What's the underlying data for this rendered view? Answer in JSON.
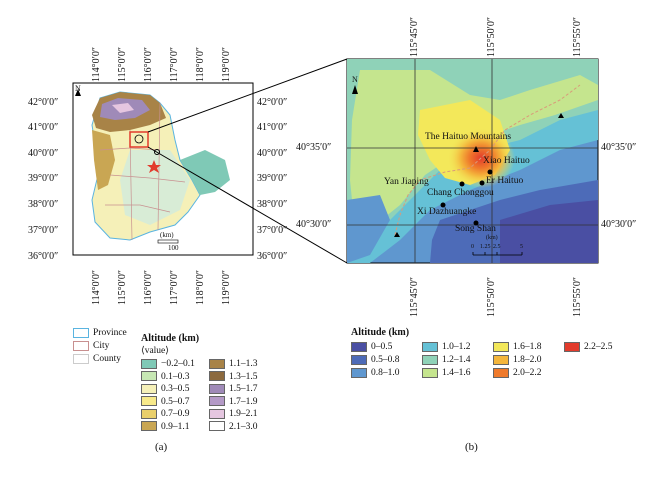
{
  "panel_a": {
    "caption": "(a)",
    "lon_ticks": [
      "114°0′0″",
      "115°0′0″",
      "116°0′0″",
      "117°0′0″",
      "118°0′0″",
      "119°0′0″"
    ],
    "lat_ticks": [
      "42°0′0″",
      "41°0′0″",
      "40°0′0″",
      "39°0′0″",
      "38°0′0″",
      "37°0′0″",
      "36°0′0″"
    ],
    "north_label": "N",
    "scale_unit": "(km)",
    "scale_value": "100",
    "boundary_legend": [
      {
        "label": "Province",
        "color": "#5ab4e0"
      },
      {
        "label": "City",
        "color": "#c89090"
      },
      {
        "label": "County",
        "color": "#cccccc"
      }
    ],
    "altitude_title": "Altitude (km)",
    "altitude_subtitle": "⟨value⟩",
    "altitude_classes": [
      {
        "label": "−0.2–0.1",
        "color": "#7fc9b6"
      },
      {
        "label": "0.1–0.3",
        "color": "#c7e8b4"
      },
      {
        "label": "0.3–0.5",
        "color": "#f5f0b8"
      },
      {
        "label": "0.5–0.7",
        "color": "#f7e98a"
      },
      {
        "label": "0.7–0.9",
        "color": "#e9cf6b"
      },
      {
        "label": "0.9–1.1",
        "color": "#c9a653"
      },
      {
        "label": "1.1–1.3",
        "color": "#a88347"
      },
      {
        "label": "1.3–1.5",
        "color": "#8c6a3e"
      },
      {
        "label": "1.5–1.7",
        "color": "#9f8ab8"
      },
      {
        "label": "1.7–1.9",
        "color": "#b49ac7"
      },
      {
        "label": "1.9–2.1",
        "color": "#e5c6e0"
      },
      {
        "label": "2.1–3.0",
        "color": "#ffffff"
      }
    ]
  },
  "panel_b": {
    "caption": "(b)",
    "lon_ticks": [
      "115°45′0″",
      "115°50′0″",
      "115°55′0″"
    ],
    "lat_ticks": [
      "40°35′0″",
      "40°30′0″"
    ],
    "north_label": "N",
    "places": [
      {
        "label": "The Haituo Mountains"
      },
      {
        "label": "Xiao Haituo"
      },
      {
        "label": "Yan Jiaping"
      },
      {
        "label": "Er Haituo"
      },
      {
        "label": "Chang Chonggou"
      },
      {
        "label": "Xi Dazhuangke"
      },
      {
        "label": "Song Shan"
      }
    ],
    "scale_unit": "(km)",
    "scale_ticks": [
      "0",
      "1.25",
      "2.5",
      "5"
    ],
    "altitude_title": "Altitude (km)",
    "altitude_classes": [
      {
        "label": "0–0.5",
        "color": "#4a4fa3"
      },
      {
        "label": "0.5–0.8",
        "color": "#4d6bb8"
      },
      {
        "label": "0.8–1.0",
        "color": "#5f97cf"
      },
      {
        "label": "1.0–1.2",
        "color": "#65c1d6"
      },
      {
        "label": "1.2–1.4",
        "color": "#8fd2b8"
      },
      {
        "label": "1.4–1.6",
        "color": "#c5e58e"
      },
      {
        "label": "1.6–1.8",
        "color": "#f3e85a"
      },
      {
        "label": "1.8–2.0",
        "color": "#f4b63c"
      },
      {
        "label": "2.0–2.2",
        "color": "#ef7a2b"
      },
      {
        "label": "2.2–2.5",
        "color": "#e23b2c"
      }
    ]
  }
}
